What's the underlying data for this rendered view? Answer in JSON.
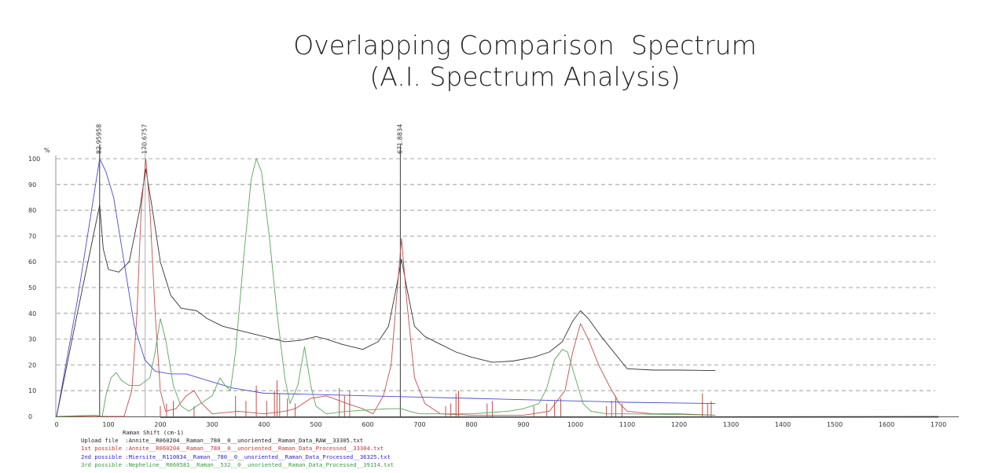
{
  "page": {
    "title_line1": "Overlapping Comparison  Spectrum",
    "title_line2": "(A.I. Spectrum Analysis)"
  },
  "chart_data": {
    "type": "line",
    "title": "Overlapping Comparison  Spectrum (A.I. Spectrum Analysis)",
    "xlabel": "Raman Shift (cm-1)",
    "ylabel": "%",
    "xlim": [
      0,
      1700
    ],
    "ylim": [
      0,
      100
    ],
    "x_ticks": [
      0,
      100,
      200,
      300,
      400,
      500,
      600,
      700,
      800,
      900,
      1000,
      1100,
      1200,
      1300,
      1400,
      1500,
      1600,
      1700
    ],
    "y_ticks": [
      0,
      10,
      20,
      30,
      40,
      50,
      60,
      70,
      80,
      90,
      100
    ],
    "grid": "horizontal dashed",
    "peak_markers": [
      {
        "x": 82.95,
        "label": "82.95958"
      },
      {
        "x": 170.68,
        "label": "170.6757"
      },
      {
        "x": 671.88,
        "label": "671.8834"
      }
    ],
    "series": [
      {
        "name": "Upload file",
        "file": "Annite__R060204__Raman__780__0__unoriented__Raman_Data_RAW__33305.txt",
        "color": "#333333",
        "points": [
          [
            0,
            0
          ],
          [
            40,
            40
          ],
          [
            83,
            82
          ],
          [
            90,
            65
          ],
          [
            100,
            57
          ],
          [
            120,
            56
          ],
          [
            140,
            60
          ],
          [
            160,
            80
          ],
          [
            172,
            96
          ],
          [
            185,
            80
          ],
          [
            200,
            60
          ],
          [
            220,
            47
          ],
          [
            240,
            42
          ],
          [
            270,
            41
          ],
          [
            290,
            38
          ],
          [
            320,
            35
          ],
          [
            360,
            33
          ],
          [
            400,
            31
          ],
          [
            440,
            29
          ],
          [
            470,
            29.5
          ],
          [
            500,
            31
          ],
          [
            520,
            30
          ],
          [
            550,
            28
          ],
          [
            590,
            26
          ],
          [
            620,
            29
          ],
          [
            640,
            35
          ],
          [
            655,
            50
          ],
          [
            665,
            61
          ],
          [
            675,
            50
          ],
          [
            690,
            35
          ],
          [
            710,
            31
          ],
          [
            740,
            28
          ],
          [
            770,
            25
          ],
          [
            800,
            23
          ],
          [
            840,
            21
          ],
          [
            880,
            21.5
          ],
          [
            920,
            23
          ],
          [
            950,
            25
          ],
          [
            975,
            29
          ],
          [
            995,
            37
          ],
          [
            1010,
            41
          ],
          [
            1025,
            38
          ],
          [
            1050,
            31
          ],
          [
            1070,
            26
          ],
          [
            1090,
            21
          ],
          [
            1100,
            18.5
          ],
          [
            1150,
            18
          ],
          [
            1200,
            18
          ],
          [
            1270,
            17.8
          ]
        ]
      },
      {
        "name": "1st possible",
        "file": "Annite__R060204__Raman__780__0__unoriented__Raman_Data_Processed__33304.txt",
        "color": "#c0504d",
        "points": [
          [
            0,
            0
          ],
          [
            130,
            0
          ],
          [
            145,
            10
          ],
          [
            155,
            40
          ],
          [
            163,
            80
          ],
          [
            172,
            100
          ],
          [
            180,
            80
          ],
          [
            190,
            40
          ],
          [
            200,
            10
          ],
          [
            210,
            2
          ],
          [
            230,
            3
          ],
          [
            250,
            8
          ],
          [
            265,
            10
          ],
          [
            280,
            5
          ],
          [
            300,
            1
          ],
          [
            350,
            2
          ],
          [
            400,
            1
          ],
          [
            440,
            2
          ],
          [
            460,
            3
          ],
          [
            490,
            7
          ],
          [
            520,
            8
          ],
          [
            560,
            5
          ],
          [
            590,
            3
          ],
          [
            610,
            1
          ],
          [
            630,
            8
          ],
          [
            645,
            20
          ],
          [
            655,
            45
          ],
          [
            665,
            69
          ],
          [
            675,
            45
          ],
          [
            690,
            15
          ],
          [
            710,
            5
          ],
          [
            740,
            1
          ],
          [
            800,
            0.5
          ],
          [
            900,
            0.5
          ],
          [
            950,
            2
          ],
          [
            980,
            10
          ],
          [
            995,
            25
          ],
          [
            1010,
            36
          ],
          [
            1025,
            30
          ],
          [
            1045,
            20
          ],
          [
            1065,
            12
          ],
          [
            1085,
            5
          ],
          [
            1100,
            2
          ],
          [
            1150,
            1
          ],
          [
            1200,
            1
          ],
          [
            1270,
            0.5
          ]
        ],
        "spikes": [
          [
            200,
            4
          ],
          [
            212,
            5
          ],
          [
            225,
            6
          ],
          [
            265,
            4
          ],
          [
            345,
            8
          ],
          [
            365,
            6
          ],
          [
            385,
            12
          ],
          [
            405,
            6
          ],
          [
            420,
            10
          ],
          [
            425,
            14
          ],
          [
            430,
            9
          ],
          [
            445,
            7
          ],
          [
            460,
            5
          ],
          [
            545,
            11
          ],
          [
            555,
            8
          ],
          [
            565,
            10
          ],
          [
            750,
            4
          ],
          [
            760,
            5
          ],
          [
            770,
            9
          ],
          [
            775,
            10
          ],
          [
            830,
            5
          ],
          [
            840,
            6
          ],
          [
            920,
            4
          ],
          [
            945,
            5
          ],
          [
            960,
            6
          ],
          [
            972,
            7
          ],
          [
            1060,
            4
          ],
          [
            1070,
            6
          ],
          [
            1078,
            8
          ],
          [
            1090,
            5
          ],
          [
            1245,
            9
          ],
          [
            1255,
            5
          ],
          [
            1262,
            6
          ]
        ]
      },
      {
        "name": "2nd possible",
        "file": "Miersite__R110034__Raman__780__0__unoriented__Raman_Data_Processed__36325.txt",
        "color": "#4b4bc8",
        "points": [
          [
            0,
            0
          ],
          [
            40,
            45
          ],
          [
            83,
            100
          ],
          [
            95,
            95
          ],
          [
            110,
            85
          ],
          [
            130,
            60
          ],
          [
            150,
            35
          ],
          [
            170,
            22
          ],
          [
            190,
            17.5
          ],
          [
            220,
            16.5
          ],
          [
            250,
            16.5
          ],
          [
            290,
            14
          ],
          [
            340,
            11
          ],
          [
            400,
            9
          ],
          [
            500,
            8.5
          ],
          [
            600,
            8
          ],
          [
            700,
            7.5
          ],
          [
            800,
            7
          ],
          [
            900,
            6.5
          ],
          [
            1000,
            6
          ],
          [
            1100,
            5.5
          ],
          [
            1200,
            5.2
          ],
          [
            1270,
            5
          ]
        ]
      },
      {
        "name": "3rd possible",
        "file": "Nepheline__R060581__Raman__532__0__unoriented__Raman_Data_Processed__39114.txt",
        "color": "#5aa55a",
        "points": [
          [
            0,
            0
          ],
          [
            75,
            0.5
          ],
          [
            88,
            0
          ],
          [
            95,
            8
          ],
          [
            105,
            15
          ],
          [
            115,
            17
          ],
          [
            125,
            14
          ],
          [
            140,
            12
          ],
          [
            160,
            12
          ],
          [
            180,
            15
          ],
          [
            190,
            25
          ],
          [
            200,
            38
          ],
          [
            210,
            30
          ],
          [
            225,
            12
          ],
          [
            240,
            4
          ],
          [
            255,
            2
          ],
          [
            270,
            4
          ],
          [
            300,
            8
          ],
          [
            315,
            15
          ],
          [
            325,
            12
          ],
          [
            335,
            10
          ],
          [
            345,
            25
          ],
          [
            360,
            60
          ],
          [
            375,
            92
          ],
          [
            385,
            100
          ],
          [
            395,
            95
          ],
          [
            410,
            70
          ],
          [
            425,
            40
          ],
          [
            440,
            15
          ],
          [
            450,
            5
          ],
          [
            465,
            12
          ],
          [
            478,
            27
          ],
          [
            490,
            12
          ],
          [
            500,
            4
          ],
          [
            520,
            1
          ],
          [
            560,
            2
          ],
          [
            600,
            2.5
          ],
          [
            640,
            3
          ],
          [
            665,
            3
          ],
          [
            680,
            2
          ],
          [
            700,
            1
          ],
          [
            800,
            1
          ],
          [
            870,
            2
          ],
          [
            900,
            3
          ],
          [
            930,
            5
          ],
          [
            945,
            11
          ],
          [
            960,
            22
          ],
          [
            975,
            26
          ],
          [
            985,
            25
          ],
          [
            1000,
            15
          ],
          [
            1015,
            5
          ],
          [
            1030,
            2
          ],
          [
            1060,
            1
          ],
          [
            1100,
            1
          ],
          [
            1270,
            0.5
          ]
        ]
      }
    ],
    "legend": [
      {
        "label": "Upload file",
        "file": "Annite__R060204__Raman__780__0__unoriented__Raman_Data_RAW__33305.txt",
        "color": "#222222"
      },
      {
        "label": "1st possible",
        "file": "Annite__R060204__Raman__780__0__unoriented__Raman_Data_Processed__33304.txt",
        "color": "#d03030"
      },
      {
        "label": "2nd possible",
        "file": "Miersite__R110034__Raman__780__0__unoriented__Raman_Data_Processed__36325.txt",
        "color": "#2b2bc8"
      },
      {
        "label": "3rd possible",
        "file": "Nepheline__R060581__Raman__532__0__unoriented__Raman_Data_Processed__39114.txt",
        "color": "#3a9a3a"
      }
    ]
  },
  "legend_text": {
    "xlabel": "Raman Shift (cm-1)",
    "rows": [
      {
        "prefix": "Upload file  :",
        "file": "Annite__R060204__Raman__780__0__unoriented__Raman_Data_RAW__33305.txt"
      },
      {
        "prefix": "1st possible :",
        "file": "Annite__R060204__Raman__780__0__unoriented__Raman_Data_Processed__33304.txt"
      },
      {
        "prefix": "2nd possible :",
        "file": "Miersite__R110034__Raman__780__0__unoriented__Raman_Data_Processed__36325.txt"
      },
      {
        "prefix": "3rd possible :",
        "file": "Nepheline__R060581__Raman__532__0__unoriented__Raman_Data_Processed__39114.txt"
      }
    ]
  }
}
